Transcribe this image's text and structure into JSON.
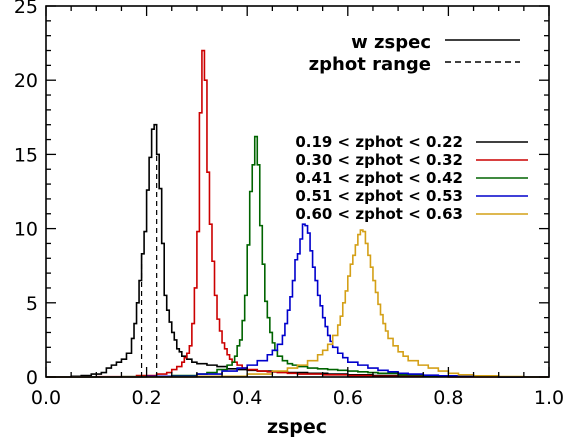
{
  "chart_data": {
    "type": "histogram",
    "xlabel": "zspec",
    "ylabel": "",
    "xlim": [
      0.0,
      1.0
    ],
    "ylim": [
      0,
      25
    ],
    "x_ticks": [
      "0.0",
      "0.2",
      "0.4",
      "0.6",
      "0.8",
      "1.0"
    ],
    "y_ticks": [
      "0",
      "5",
      "10",
      "15",
      "20",
      "25"
    ],
    "style_legend": [
      {
        "label": "w zspec",
        "style": "solid"
      },
      {
        "label": "zphot range",
        "style": "dashed"
      }
    ],
    "series": [
      {
        "name": "0.19 < zphot < 0.22",
        "color": "#000000",
        "peak": 17,
        "bins": [
          [
            0.0,
            0
          ],
          [
            0.05,
            0.05
          ],
          [
            0.07,
            0.1
          ],
          [
            0.09,
            0.2
          ],
          [
            0.11,
            0.3
          ],
          [
            0.12,
            0.6
          ],
          [
            0.13,
            0.8
          ],
          [
            0.14,
            1.0
          ],
          [
            0.15,
            1.2
          ],
          [
            0.16,
            1.6
          ],
          [
            0.17,
            2.6
          ],
          [
            0.175,
            3.6
          ],
          [
            0.18,
            5.0
          ],
          [
            0.185,
            6.5
          ],
          [
            0.19,
            8.3
          ],
          [
            0.195,
            9.8
          ],
          [
            0.2,
            12.6
          ],
          [
            0.205,
            14.8
          ],
          [
            0.21,
            16.7
          ],
          [
            0.215,
            17.0
          ],
          [
            0.22,
            15.0
          ],
          [
            0.225,
            12.7
          ],
          [
            0.23,
            9.0
          ],
          [
            0.235,
            5.5
          ],
          [
            0.24,
            4.5
          ],
          [
            0.245,
            3.7
          ],
          [
            0.25,
            3.0
          ],
          [
            0.255,
            2.5
          ],
          [
            0.26,
            1.9
          ],
          [
            0.265,
            1.7
          ],
          [
            0.27,
            1.4
          ],
          [
            0.28,
            1.2
          ],
          [
            0.29,
            1.0
          ],
          [
            0.3,
            0.9
          ],
          [
            0.32,
            0.8
          ],
          [
            0.34,
            0.7
          ],
          [
            0.36,
            0.55
          ],
          [
            0.38,
            0.5
          ],
          [
            0.4,
            0.45
          ],
          [
            0.42,
            0.4
          ],
          [
            0.45,
            0.35
          ],
          [
            0.48,
            0.3
          ],
          [
            0.52,
            0.25
          ],
          [
            0.56,
            0.2
          ],
          [
            0.6,
            0.15
          ],
          [
            0.65,
            0.1
          ],
          [
            0.7,
            0.05
          ],
          [
            0.8,
            0.02
          ],
          [
            0.9,
            0
          ]
        ]
      },
      {
        "name": "0.30 < zphot < 0.32",
        "color": "#cc0000",
        "peak": 22,
        "bins": [
          [
            0.0,
            0
          ],
          [
            0.1,
            0.02
          ],
          [
            0.18,
            0.1
          ],
          [
            0.22,
            0.2
          ],
          [
            0.24,
            0.3
          ],
          [
            0.25,
            0.5
          ],
          [
            0.26,
            0.7
          ],
          [
            0.27,
            1.0
          ],
          [
            0.275,
            1.3
          ],
          [
            0.28,
            1.6
          ],
          [
            0.285,
            2.1
          ],
          [
            0.29,
            3.6
          ],
          [
            0.295,
            6.0
          ],
          [
            0.3,
            9.8
          ],
          [
            0.305,
            17.8
          ],
          [
            0.31,
            22.0
          ],
          [
            0.315,
            20.0
          ],
          [
            0.32,
            13.8
          ],
          [
            0.325,
            10.3
          ],
          [
            0.33,
            7.8
          ],
          [
            0.335,
            5.5
          ],
          [
            0.34,
            3.9
          ],
          [
            0.345,
            3.1
          ],
          [
            0.35,
            2.3
          ],
          [
            0.355,
            1.9
          ],
          [
            0.36,
            1.5
          ],
          [
            0.365,
            1.2
          ],
          [
            0.37,
            1.0
          ],
          [
            0.38,
            0.8
          ],
          [
            0.39,
            0.6
          ],
          [
            0.4,
            0.5
          ],
          [
            0.42,
            0.4
          ],
          [
            0.44,
            0.35
          ],
          [
            0.46,
            0.3
          ],
          [
            0.48,
            0.25
          ],
          [
            0.5,
            0.2
          ],
          [
            0.55,
            0.15
          ],
          [
            0.6,
            0.1
          ],
          [
            0.65,
            0.05
          ],
          [
            0.7,
            0.03
          ],
          [
            0.8,
            0
          ]
        ]
      },
      {
        "name": "0.41 < zphot < 0.42",
        "color": "#006400",
        "peak": 16.2,
        "bins": [
          [
            0.0,
            0
          ],
          [
            0.15,
            0.02
          ],
          [
            0.25,
            0.1
          ],
          [
            0.3,
            0.2
          ],
          [
            0.32,
            0.3
          ],
          [
            0.34,
            0.5
          ],
          [
            0.36,
            0.8
          ],
          [
            0.37,
            1.0
          ],
          [
            0.375,
            1.4
          ],
          [
            0.38,
            2.1
          ],
          [
            0.385,
            2.5
          ],
          [
            0.39,
            3.8
          ],
          [
            0.395,
            5.5
          ],
          [
            0.4,
            8.9
          ],
          [
            0.405,
            12.5
          ],
          [
            0.41,
            14.3
          ],
          [
            0.415,
            16.2
          ],
          [
            0.42,
            14.3
          ],
          [
            0.425,
            10.2
          ],
          [
            0.43,
            7.6
          ],
          [
            0.435,
            5.1
          ],
          [
            0.44,
            4.0
          ],
          [
            0.445,
            3.0
          ],
          [
            0.45,
            2.3
          ],
          [
            0.455,
            1.8
          ],
          [
            0.46,
            1.4
          ],
          [
            0.47,
            1.1
          ],
          [
            0.48,
            0.9
          ],
          [
            0.49,
            0.8
          ],
          [
            0.5,
            0.7
          ],
          [
            0.52,
            0.6
          ],
          [
            0.54,
            0.55
          ],
          [
            0.56,
            0.5
          ],
          [
            0.58,
            0.45
          ],
          [
            0.6,
            0.4
          ],
          [
            0.62,
            0.35
          ],
          [
            0.64,
            0.3
          ],
          [
            0.66,
            0.25
          ],
          [
            0.7,
            0.15
          ],
          [
            0.75,
            0.08
          ],
          [
            0.8,
            0.03
          ],
          [
            0.9,
            0
          ]
        ]
      },
      {
        "name": "0.51 < zphot < 0.53",
        "color": "#0000cc",
        "peak": 10.3,
        "bins": [
          [
            0.0,
            0
          ],
          [
            0.2,
            0.05
          ],
          [
            0.3,
            0.2
          ],
          [
            0.35,
            0.4
          ],
          [
            0.38,
            0.6
          ],
          [
            0.4,
            0.8
          ],
          [
            0.42,
            1.1
          ],
          [
            0.44,
            1.5
          ],
          [
            0.45,
            1.8
          ],
          [
            0.46,
            2.2
          ],
          [
            0.47,
            2.8
          ],
          [
            0.475,
            3.6
          ],
          [
            0.48,
            4.5
          ],
          [
            0.485,
            5.4
          ],
          [
            0.49,
            6.5
          ],
          [
            0.495,
            7.9
          ],
          [
            0.5,
            8.3
          ],
          [
            0.505,
            9.3
          ],
          [
            0.51,
            10.3
          ],
          [
            0.515,
            10.2
          ],
          [
            0.52,
            9.7
          ],
          [
            0.525,
            8.5
          ],
          [
            0.53,
            7.4
          ],
          [
            0.535,
            6.5
          ],
          [
            0.54,
            5.5
          ],
          [
            0.545,
            4.8
          ],
          [
            0.55,
            4.0
          ],
          [
            0.555,
            3.4
          ],
          [
            0.56,
            2.8
          ],
          [
            0.565,
            2.4
          ],
          [
            0.57,
            2.0
          ],
          [
            0.58,
            1.6
          ],
          [
            0.59,
            1.3
          ],
          [
            0.6,
            1.0
          ],
          [
            0.62,
            0.8
          ],
          [
            0.64,
            0.6
          ],
          [
            0.66,
            0.45
          ],
          [
            0.68,
            0.35
          ],
          [
            0.7,
            0.25
          ],
          [
            0.72,
            0.2
          ],
          [
            0.75,
            0.12
          ],
          [
            0.78,
            0.08
          ],
          [
            0.82,
            0.04
          ],
          [
            0.9,
            0
          ]
        ]
      },
      {
        "name": "0.60 < zphot < 0.63",
        "color": "#d4a017",
        "peak": 9.9,
        "bins": [
          [
            0.0,
            0
          ],
          [
            0.3,
            0.05
          ],
          [
            0.4,
            0.2
          ],
          [
            0.45,
            0.4
          ],
          [
            0.48,
            0.6
          ],
          [
            0.5,
            0.8
          ],
          [
            0.52,
            1.1
          ],
          [
            0.54,
            1.5
          ],
          [
            0.55,
            1.8
          ],
          [
            0.56,
            2.2
          ],
          [
            0.57,
            2.8
          ],
          [
            0.58,
            3.5
          ],
          [
            0.585,
            4.1
          ],
          [
            0.59,
            5.0
          ],
          [
            0.595,
            5.8
          ],
          [
            0.6,
            6.8
          ],
          [
            0.605,
            7.6
          ],
          [
            0.61,
            8.2
          ],
          [
            0.615,
            8.9
          ],
          [
            0.62,
            9.6
          ],
          [
            0.625,
            9.9
          ],
          [
            0.63,
            9.8
          ],
          [
            0.635,
            9.0
          ],
          [
            0.64,
            8.2
          ],
          [
            0.645,
            7.4
          ],
          [
            0.65,
            6.5
          ],
          [
            0.655,
            5.7
          ],
          [
            0.66,
            4.9
          ],
          [
            0.665,
            4.2
          ],
          [
            0.67,
            3.6
          ],
          [
            0.675,
            3.1
          ],
          [
            0.68,
            2.6
          ],
          [
            0.69,
            2.1
          ],
          [
            0.7,
            1.7
          ],
          [
            0.71,
            1.4
          ],
          [
            0.72,
            1.1
          ],
          [
            0.74,
            0.8
          ],
          [
            0.76,
            0.6
          ],
          [
            0.78,
            0.4
          ],
          [
            0.8,
            0.25
          ],
          [
            0.82,
            0.15
          ],
          [
            0.85,
            0.08
          ],
          [
            0.9,
            0.03
          ],
          [
            0.95,
            0
          ]
        ]
      }
    ],
    "zphot_range_lines": [
      0.19,
      0.22
    ]
  }
}
